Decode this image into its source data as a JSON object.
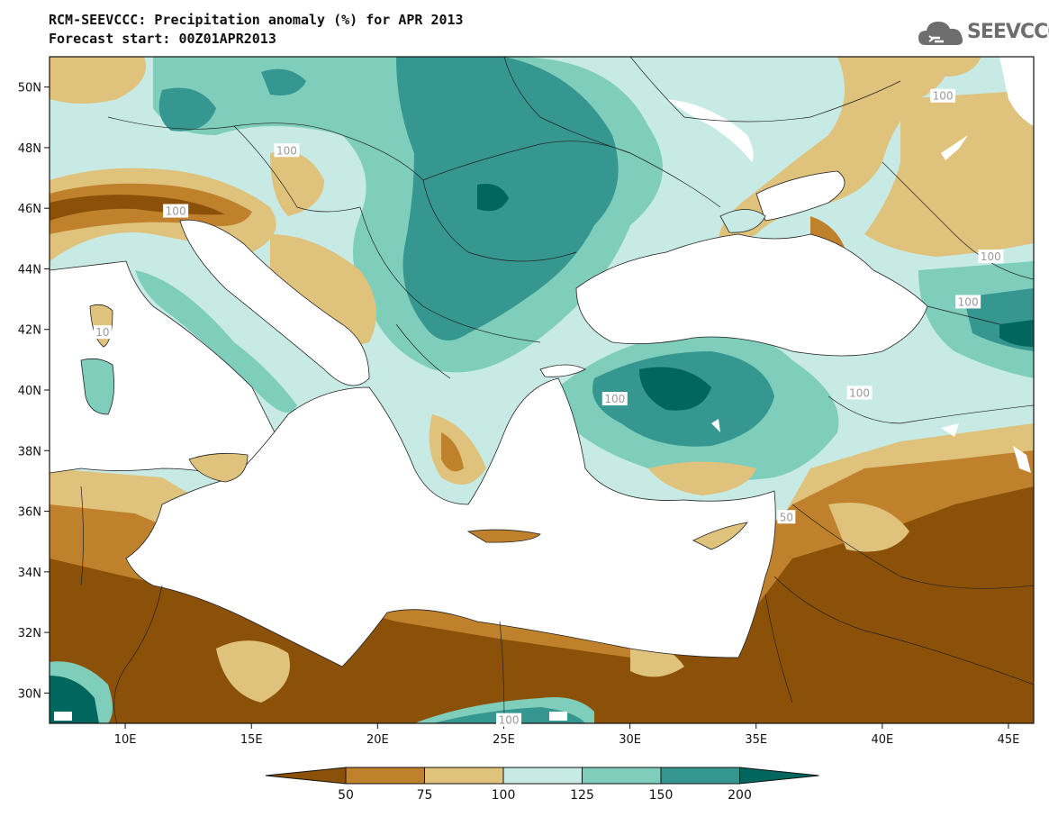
{
  "header": {
    "title": "RCM-SEEVCCC: Precipitation anomaly (%) for APR 2013",
    "subtitle": "Forecast start: 00Z01APR2013"
  },
  "logo": {
    "text": "SEEVCCC",
    "icon": "cloud-icon",
    "color": "#6e6e6e"
  },
  "map": {
    "lon_range": [
      7,
      46
    ],
    "lat_range": [
      29,
      51
    ],
    "lat_ticks": [
      {
        "value": 50,
        "label": "50N"
      },
      {
        "value": 48,
        "label": "48N"
      },
      {
        "value": 46,
        "label": "46N"
      },
      {
        "value": 44,
        "label": "44N"
      },
      {
        "value": 42,
        "label": "42N"
      },
      {
        "value": 40,
        "label": "40N"
      },
      {
        "value": 38,
        "label": "38N"
      },
      {
        "value": 36,
        "label": "36N"
      },
      {
        "value": 34,
        "label": "34N"
      },
      {
        "value": 32,
        "label": "32N"
      },
      {
        "value": 30,
        "label": "30N"
      }
    ],
    "lon_ticks": [
      {
        "value": 10,
        "label": "10E"
      },
      {
        "value": 15,
        "label": "15E"
      },
      {
        "value": 20,
        "label": "20E"
      },
      {
        "value": 25,
        "label": "25E"
      },
      {
        "value": 30,
        "label": "30E"
      },
      {
        "value": 35,
        "label": "35E"
      },
      {
        "value": 40,
        "label": "40E"
      },
      {
        "value": 45,
        "label": "45E"
      }
    ],
    "contour_labels": [
      {
        "text": "100",
        "lon": 12.0,
        "lat": 45.9
      },
      {
        "text": "100",
        "lon": 16.4,
        "lat": 47.9
      },
      {
        "text": "10",
        "lon": 9.1,
        "lat": 41.9
      },
      {
        "text": "100",
        "lon": 42.4,
        "lat": 49.7
      },
      {
        "text": "100",
        "lon": 44.3,
        "lat": 44.4
      },
      {
        "text": "100",
        "lon": 43.4,
        "lat": 42.9
      },
      {
        "text": "100",
        "lon": 29.4,
        "lat": 39.7
      },
      {
        "text": "100",
        "lon": 39.1,
        "lat": 39.9
      },
      {
        "text": "100",
        "lon": 25.2,
        "lat": 29.1
      },
      {
        "text": "50",
        "lon": 36.2,
        "lat": 35.8
      }
    ]
  },
  "colorbar": {
    "levels": [
      "50",
      "75",
      "100",
      "125",
      "150",
      "200"
    ],
    "colors": [
      "#8c5109",
      "#bf812c",
      "#dfc27c",
      "#c7eae5",
      "#7fcdbb",
      "#35978f",
      "#01665e"
    ]
  }
}
